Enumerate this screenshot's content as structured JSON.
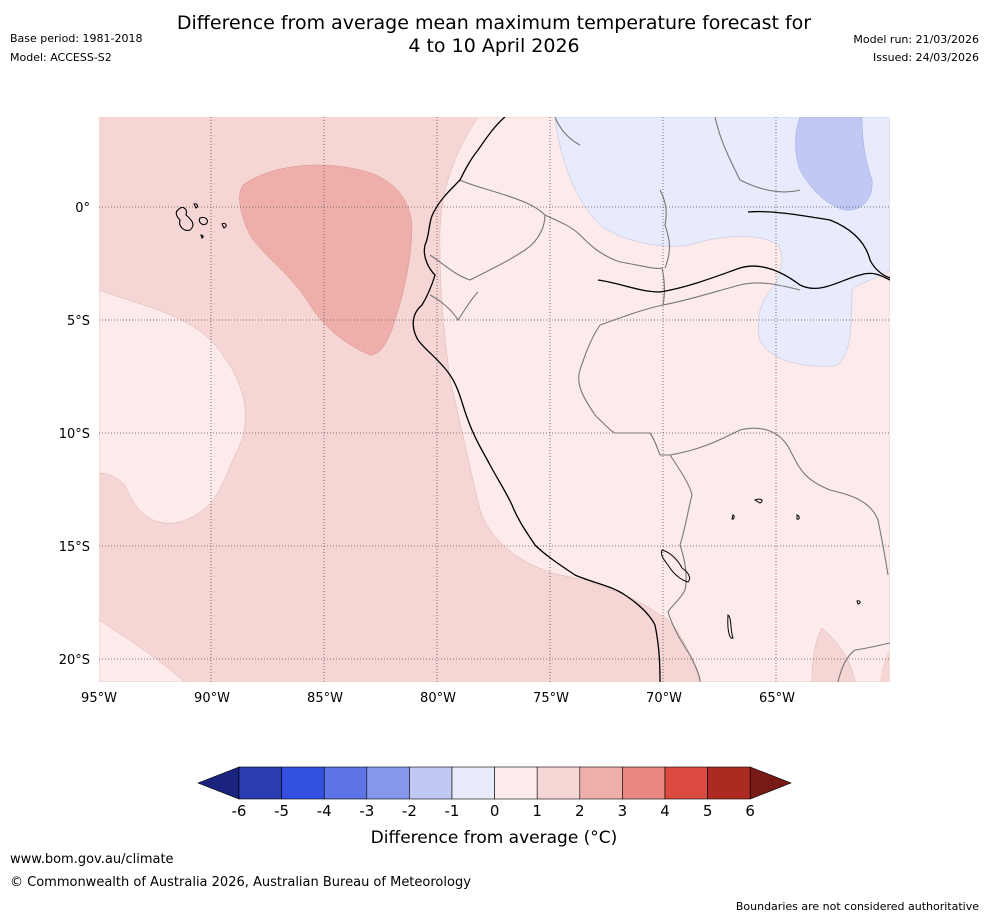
{
  "header": {
    "title_line1": "Difference from average mean maximum temperature forecast for",
    "title_line2": "4 to 10 April 2026",
    "base_period": "Base period: 1981-2018",
    "model": "Model: ACCESS-S2",
    "model_run": "Model run: 21/03/2026",
    "issued": "Issued: 24/03/2026"
  },
  "map": {
    "lon_labels": [
      "95°W",
      "90°W",
      "85°W",
      "80°W",
      "75°W",
      "70°W",
      "65°W"
    ],
    "lat_labels": [
      "0°",
      "5°S",
      "10°S",
      "15°S",
      "20°S"
    ]
  },
  "colorbar": {
    "ticks": [
      "-6",
      "-5",
      "-4",
      "-3",
      "-2",
      "-1",
      "0",
      "1",
      "2",
      "3",
      "4",
      "5",
      "6"
    ],
    "colors": [
      "#1a237e",
      "#2a3db0",
      "#3350e0",
      "#5c74e6",
      "#8696ec",
      "#c1c8f3",
      "#e8ebfb",
      "#fcebea",
      "#f6d6d4",
      "#eeaeaa",
      "#e88880",
      "#db4b40",
      "#ad2a22",
      "#7a1a16"
    ],
    "title": "Difference from average (°C)"
  },
  "footer": {
    "website": "www.bom.gov.au/climate",
    "copyright": "© Commonwealth of Australia 2026, Australian Bureau of Meteorology",
    "disclaimer": "Boundaries are not considered authoritative"
  }
}
